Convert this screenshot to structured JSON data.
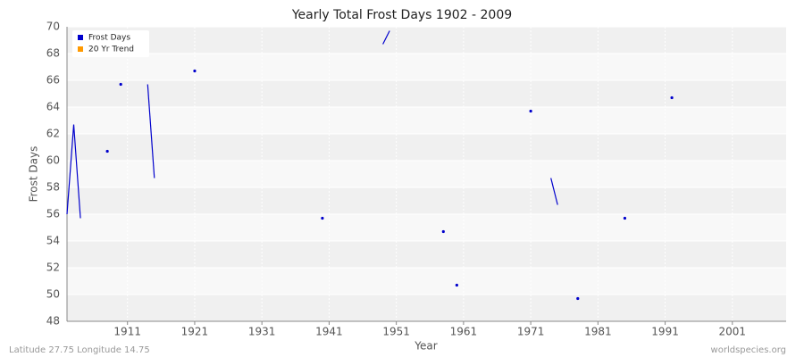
{
  "chart_data": {
    "type": "line",
    "title": "Yearly Total Frost Days 1902 - 2009",
    "x_label": "Year",
    "y_label": "Frost Days",
    "footer_left": "Latitude 27.75 Longitude 14.75",
    "footer_right": "worldspecies.org",
    "x": [
      1902,
      1903,
      1904,
      1905,
      1908,
      1909,
      1910,
      1911,
      1914,
      1915,
      1916,
      1921,
      1922,
      1940,
      1941,
      1949,
      1950,
      1951,
      1958,
      1959,
      1960,
      1961,
      1971,
      1972,
      1974,
      1975,
      1976,
      1978,
      1979,
      1985,
      1986,
      1992
    ],
    "series": [
      {
        "name": "Frost Days",
        "color": "#0000cc",
        "values": [
          56,
          62.7,
          55.7,
          null,
          60.7,
          null,
          65.7,
          null,
          65.7,
          58.7,
          null,
          66.7,
          null,
          55.7,
          null,
          68.7,
          69.7,
          null,
          54.7,
          null,
          50.7,
          null,
          63.7,
          null,
          58.7,
          56.7,
          null,
          49.7,
          null,
          55.7,
          null,
          64.7
        ]
      },
      {
        "name": "20 Yr Trend",
        "color": "#ff9900",
        "values": [
          null,
          null,
          null,
          null,
          null,
          null,
          null,
          null,
          null,
          null,
          null,
          null,
          null,
          null,
          null,
          null,
          null,
          null,
          null,
          null,
          null,
          null,
          null,
          null,
          null,
          null,
          null,
          null,
          null,
          null,
          null,
          null
        ]
      }
    ],
    "xlim": [
      1902,
      2009
    ],
    "xticks": [
      1911,
      1921,
      1931,
      1941,
      1951,
      1961,
      1971,
      1981,
      1991,
      2001
    ],
    "ylim": [
      48,
      70
    ],
    "yticks": [
      48,
      50,
      52,
      54,
      56,
      58,
      60,
      62,
      64,
      66,
      68,
      70
    ],
    "grid": true,
    "legend": "upper left"
  }
}
